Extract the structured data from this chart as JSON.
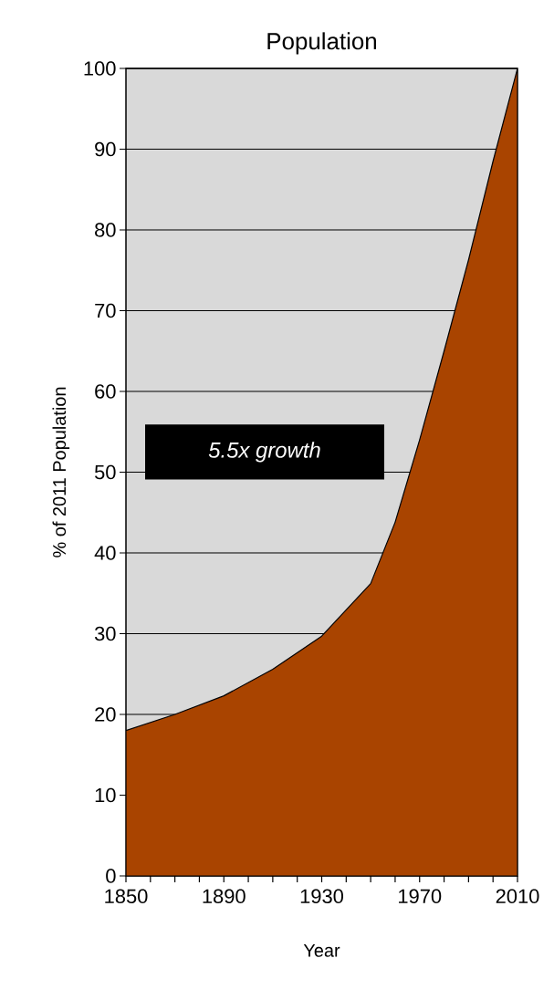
{
  "chart_data": {
    "type": "area",
    "title": "Population",
    "xlabel": "Year",
    "ylabel": "% of  2011 Population",
    "x": [
      1850,
      1870,
      1890,
      1910,
      1930,
      1950,
      1960,
      1970,
      1980,
      1990,
      2000,
      2010
    ],
    "series": [
      {
        "color": "#a94400",
        "values": [
          18,
          20,
          22.3,
          25.6,
          29.7,
          36.2,
          43.8,
          54,
          65,
          76.3,
          88.5,
          100
        ]
      }
    ],
    "xlim": [
      1850,
      2010
    ],
    "xticks": [
      1850,
      {
        "value": 1860,
        "label": null
      },
      {
        "value": 1870,
        "label": null
      },
      {
        "value": 1880,
        "label": null
      },
      1890,
      {
        "value": 1900,
        "label": null
      },
      {
        "value": 1910,
        "label": null
      },
      {
        "value": 1920,
        "label": null
      },
      1930,
      {
        "value": 1940,
        "label": null
      },
      {
        "value": 1950,
        "label": null
      },
      {
        "value": 1960,
        "label": null
      },
      1970,
      {
        "value": 1980,
        "label": null
      },
      {
        "value": 1990,
        "label": null
      },
      {
        "value": 2000,
        "label": null
      },
      2010
    ],
    "ylim": [
      0,
      100
    ],
    "yticks": [
      0,
      10,
      20,
      30,
      40,
      50,
      60,
      70,
      80,
      90,
      100
    ],
    "grid": "y",
    "annotations": [
      "5.5x growth"
    ]
  }
}
